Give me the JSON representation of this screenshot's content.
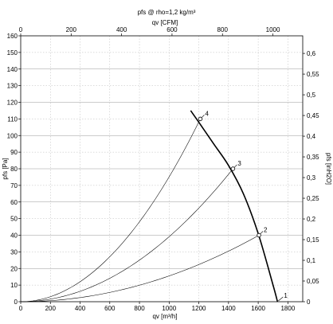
{
  "chart_data": {
    "type": "line",
    "title": "pfs @ rho=1,2 kg/m³",
    "x_axis": {
      "label": "qv [m³/h]",
      "range": [
        0,
        1900
      ],
      "ticks": [
        0,
        200,
        400,
        600,
        800,
        1000,
        1200,
        1400,
        1600,
        1800
      ]
    },
    "x2_axis": {
      "label": "qv [CFM]",
      "range": [
        0,
        1118.3
      ],
      "ticks": [
        0,
        200,
        400,
        600,
        800,
        1000
      ]
    },
    "y_axis": {
      "label": "pfs [Pa]",
      "range": [
        0,
        160
      ],
      "ticks": [
        0,
        10,
        20,
        30,
        40,
        50,
        60,
        70,
        80,
        90,
        100,
        110,
        120,
        130,
        140,
        150,
        160
      ]
    },
    "y2_axis": {
      "label": "pfs [inH2O]",
      "range": [
        0,
        0.6425
      ],
      "ticks": [
        "0",
        "0,05",
        "0,1",
        "0,15",
        "0,2",
        "0,25",
        "0,3",
        "0,35",
        "0,4",
        "0,45",
        "0,5",
        "0,55",
        "0,6"
      ],
      "tick_values": [
        0,
        0.05,
        0.1,
        0.15,
        0.2,
        0.25,
        0.3,
        0.35,
        0.4,
        0.45,
        0.5,
        0.55,
        0.6
      ]
    },
    "grid": true,
    "fan_curve": {
      "x": [
        1145,
        1200,
        1300,
        1400,
        1500,
        1600,
        1700,
        1730
      ],
      "y": [
        115,
        108,
        95,
        82,
        65,
        41,
        10,
        0
      ]
    },
    "system_curves": [
      {
        "point": "1",
        "x": 1730,
        "y": 0
      },
      {
        "point": "2",
        "x": 1605,
        "y": 40
      },
      {
        "point": "3",
        "x": 1430,
        "y": 80
      },
      {
        "point": "4",
        "x": 1210,
        "y": 110
      }
    ],
    "operating_points": [
      {
        "label": "1",
        "x": 1730,
        "y": 0
      },
      {
        "label": "2",
        "x": 1605,
        "y": 40
      },
      {
        "label": "3",
        "x": 1430,
        "y": 80
      },
      {
        "label": "4",
        "x": 1210,
        "y": 110
      }
    ]
  }
}
